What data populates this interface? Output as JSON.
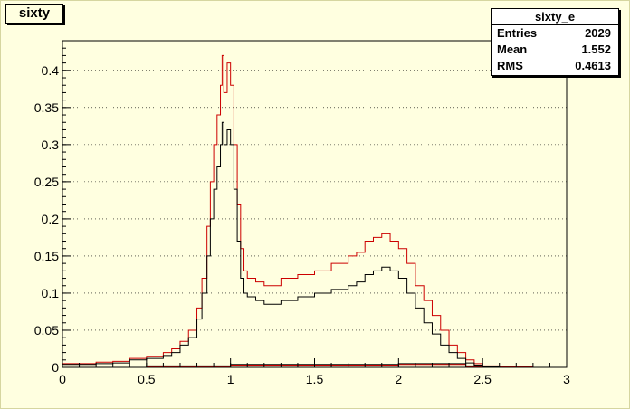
{
  "canvas": {
    "background": "#ffffe0",
    "frame_color": "#000000"
  },
  "title_box": {
    "label": "sixty"
  },
  "stats": {
    "title": "sixty_e",
    "rows": [
      {
        "label": "Entries",
        "value": "2029"
      },
      {
        "label": "Mean",
        "value": "1.552"
      },
      {
        "label": "RMS",
        "value": "0.4613"
      }
    ]
  },
  "chart_data": {
    "type": "line",
    "title": "sixty",
    "xlabel": "",
    "ylabel": "",
    "xlim": [
      0,
      3
    ],
    "ylim": [
      0,
      0.44
    ],
    "xticks": [
      0,
      0.5,
      1,
      1.5,
      2,
      2.5,
      3
    ],
    "xtick_labels": [
      "0",
      "0.5",
      "1",
      "1.5",
      "2",
      "2.5",
      "3"
    ],
    "yticks": [
      0,
      0.05,
      0.1,
      0.15,
      0.2,
      0.25,
      0.3,
      0.35,
      0.4
    ],
    "ytick_labels": [
      "0",
      "0.05",
      "0.1",
      "0.15",
      "0.2",
      "0.25",
      "0.3",
      "0.35",
      "0.4"
    ],
    "grid": "horizontal dotted",
    "series": [
      {
        "color": "#cc0000",
        "x": [
          0.0,
          0.1,
          0.2,
          0.3,
          0.4,
          0.5,
          0.6,
          0.65,
          0.7,
          0.75,
          0.8,
          0.83,
          0.86,
          0.88,
          0.9,
          0.92,
          0.94,
          0.95,
          0.96,
          0.98,
          1.0,
          1.02,
          1.04,
          1.06,
          1.08,
          1.1,
          1.15,
          1.2,
          1.3,
          1.4,
          1.5,
          1.6,
          1.7,
          1.75,
          1.8,
          1.85,
          1.9,
          1.95,
          2.0,
          2.05,
          2.1,
          2.15,
          2.2,
          2.25,
          2.3,
          2.35,
          2.4,
          2.45,
          2.5,
          2.6,
          2.8,
          3.0
        ],
        "y": [
          0.005,
          0.005,
          0.007,
          0.008,
          0.012,
          0.015,
          0.02,
          0.025,
          0.035,
          0.05,
          0.08,
          0.12,
          0.19,
          0.25,
          0.3,
          0.34,
          0.38,
          0.42,
          0.37,
          0.41,
          0.38,
          0.3,
          0.22,
          0.16,
          0.13,
          0.12,
          0.115,
          0.11,
          0.12,
          0.125,
          0.13,
          0.14,
          0.15,
          0.155,
          0.17,
          0.175,
          0.18,
          0.17,
          0.16,
          0.14,
          0.11,
          0.09,
          0.07,
          0.05,
          0.03,
          0.02,
          0.01,
          0.005,
          0.002,
          0.001,
          0.0,
          0.0
        ]
      },
      {
        "color": "#000000",
        "x": [
          0.0,
          0.1,
          0.2,
          0.3,
          0.4,
          0.5,
          0.6,
          0.65,
          0.7,
          0.75,
          0.8,
          0.83,
          0.86,
          0.88,
          0.9,
          0.92,
          0.94,
          0.95,
          0.96,
          0.98,
          1.0,
          1.02,
          1.04,
          1.06,
          1.08,
          1.1,
          1.15,
          1.2,
          1.3,
          1.4,
          1.5,
          1.6,
          1.7,
          1.75,
          1.8,
          1.85,
          1.9,
          1.95,
          2.0,
          2.05,
          2.1,
          2.15,
          2.2,
          2.25,
          2.3,
          2.35,
          2.4,
          2.45,
          2.5,
          2.6,
          2.8,
          3.0
        ],
        "y": [
          0.004,
          0.004,
          0.005,
          0.006,
          0.01,
          0.012,
          0.016,
          0.02,
          0.03,
          0.04,
          0.065,
          0.1,
          0.15,
          0.2,
          0.24,
          0.27,
          0.3,
          0.33,
          0.3,
          0.32,
          0.3,
          0.24,
          0.17,
          0.12,
          0.1,
          0.095,
          0.09,
          0.085,
          0.09,
          0.095,
          0.1,
          0.105,
          0.11,
          0.115,
          0.125,
          0.13,
          0.135,
          0.13,
          0.12,
          0.1,
          0.08,
          0.06,
          0.045,
          0.03,
          0.02,
          0.012,
          0.006,
          0.003,
          0.001,
          0.0,
          0.0,
          0.0
        ]
      },
      {
        "color": "#000000",
        "x": [
          0.0,
          0.5,
          1.0,
          1.5,
          2.0,
          2.4,
          2.5,
          3.0
        ],
        "y": [
          0.0,
          0.002,
          0.004,
          0.004,
          0.005,
          0.002,
          0.0,
          0.0
        ]
      },
      {
        "color": "#cc0000",
        "x": [
          0.0,
          0.5,
          1.0,
          1.5,
          2.0,
          2.4,
          2.5,
          3.0
        ],
        "y": [
          0.0,
          0.001,
          0.003,
          0.003,
          0.004,
          0.001,
          0.0,
          0.0
        ]
      }
    ]
  }
}
